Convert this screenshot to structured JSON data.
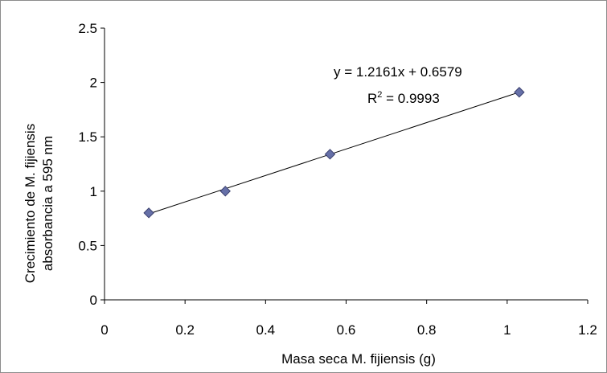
{
  "chart_data": {
    "type": "scatter",
    "x": [
      0.11,
      0.3,
      0.56,
      1.03
    ],
    "y": [
      0.8,
      1.0,
      1.34,
      1.91
    ],
    "trendline": {
      "slope": 1.2161,
      "intercept": 0.6579,
      "x_range": [
        0.11,
        1.03
      ]
    },
    "xlabel": "Masa seca M. fijiensis (g)",
    "ylabel_lines": [
      "Crecimiento de  M. fijiensis",
      "absorbancia a 595 nm"
    ],
    "xlim": [
      0,
      1.2
    ],
    "ylim": [
      0,
      2.5
    ],
    "x_ticks": [
      "0",
      "0.2",
      "0.4",
      "0.6",
      "0.8",
      "1",
      "1.2"
    ],
    "y_ticks": [
      "0",
      "0.5",
      "1",
      "1.5",
      "2",
      "2.5"
    ],
    "equation": "y = 1.2161x + 0.6579",
    "r2_prefix": "R",
    "r2_sup": "2",
    "r2_value": " = 0.9993",
    "grid": false,
    "marker_color": "#6670a8",
    "marker_stroke": "#3a3f6e",
    "line_color": "#000000"
  }
}
